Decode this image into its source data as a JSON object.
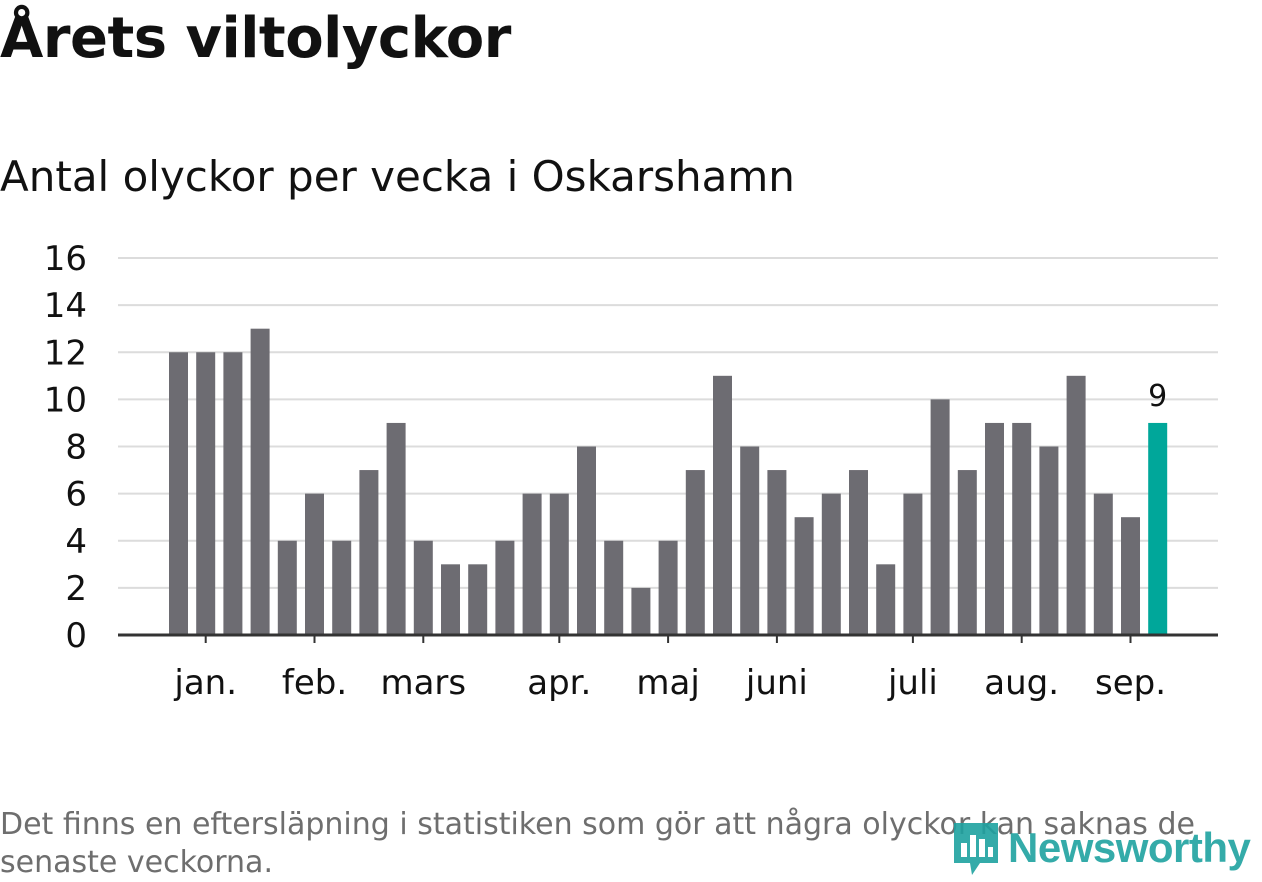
{
  "header": {
    "title": "Årets viltolyckor",
    "subtitle": "Antal olyckor per vecka i Oskarshamn"
  },
  "footnote": "Det finns en eftersläpning i statistiken som gör att några olyckor kan saknas de senaste veckorna.",
  "logo": {
    "text": "Newsworthy",
    "icon": "newsworthy-bar-chart-icon"
  },
  "colors": {
    "bar": "#6d6c72",
    "highlight": "#00a79a",
    "grid": "#dcdcdc",
    "axis": "#333333",
    "text": "#111111"
  },
  "chart_data": {
    "type": "bar",
    "title": "",
    "xlabel": "",
    "ylabel": "",
    "ylim": [
      0,
      16
    ],
    "yticks": [
      "0",
      "2",
      "4",
      "6",
      "8",
      "10",
      "12",
      "14",
      "16"
    ],
    "grid": true,
    "values": [
      12,
      12,
      12,
      13,
      4,
      6,
      4,
      7,
      9,
      4,
      3,
      3,
      4,
      6,
      6,
      8,
      4,
      2,
      4,
      7,
      11,
      8,
      7,
      5,
      6,
      7,
      3,
      6,
      10,
      7,
      9,
      9,
      8,
      11,
      6,
      5,
      9
    ],
    "highlight_index": 36,
    "value_label": "9",
    "month_ticks": [
      {
        "label": "jan.",
        "week": 1
      },
      {
        "label": "feb.",
        "week": 5
      },
      {
        "label": "mars",
        "week": 9
      },
      {
        "label": "apr.",
        "week": 14
      },
      {
        "label": "maj",
        "week": 18
      },
      {
        "label": "juni",
        "week": 22
      },
      {
        "label": "juli",
        "week": 27
      },
      {
        "label": "aug.",
        "week": 31
      },
      {
        "label": "sep.",
        "week": 35
      }
    ]
  }
}
